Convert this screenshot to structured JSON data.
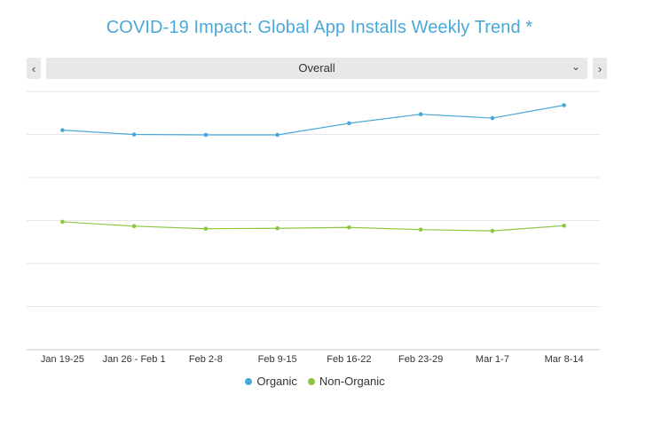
{
  "title": "COVID-19 Impact: Global App Installs Weekly Trend *",
  "selector": {
    "value": "Overall",
    "prev_icon": "chevron-left-icon",
    "next_icon": "chevron-right-icon",
    "dropdown_icon": "chevron-down-icon"
  },
  "chart_data": {
    "type": "line",
    "title": "COVID-19 Impact: Global App Installs Weekly Trend *",
    "xlabel": "",
    "ylabel": "",
    "grid": true,
    "legend": "bottom-center",
    "categories": [
      "Jan 19-25",
      "Jan 26 - Feb 1",
      "Feb 2-8",
      "Feb 9-15",
      "Feb 16-22",
      "Feb 23-29",
      "Mar 1-7",
      "Mar 8-14"
    ],
    "ylim": [
      0,
      6
    ],
    "series": [
      {
        "name": "Organic",
        "color": "#4aa8d8",
        "values": [
          5.1,
          5.0,
          4.99,
          4.99,
          5.26,
          5.47,
          5.38,
          5.68
        ]
      },
      {
        "name": "Non-Organic",
        "color": "#8cc63f",
        "values": [
          2.97,
          2.87,
          2.81,
          2.82,
          2.84,
          2.79,
          2.76,
          2.88
        ]
      }
    ]
  }
}
